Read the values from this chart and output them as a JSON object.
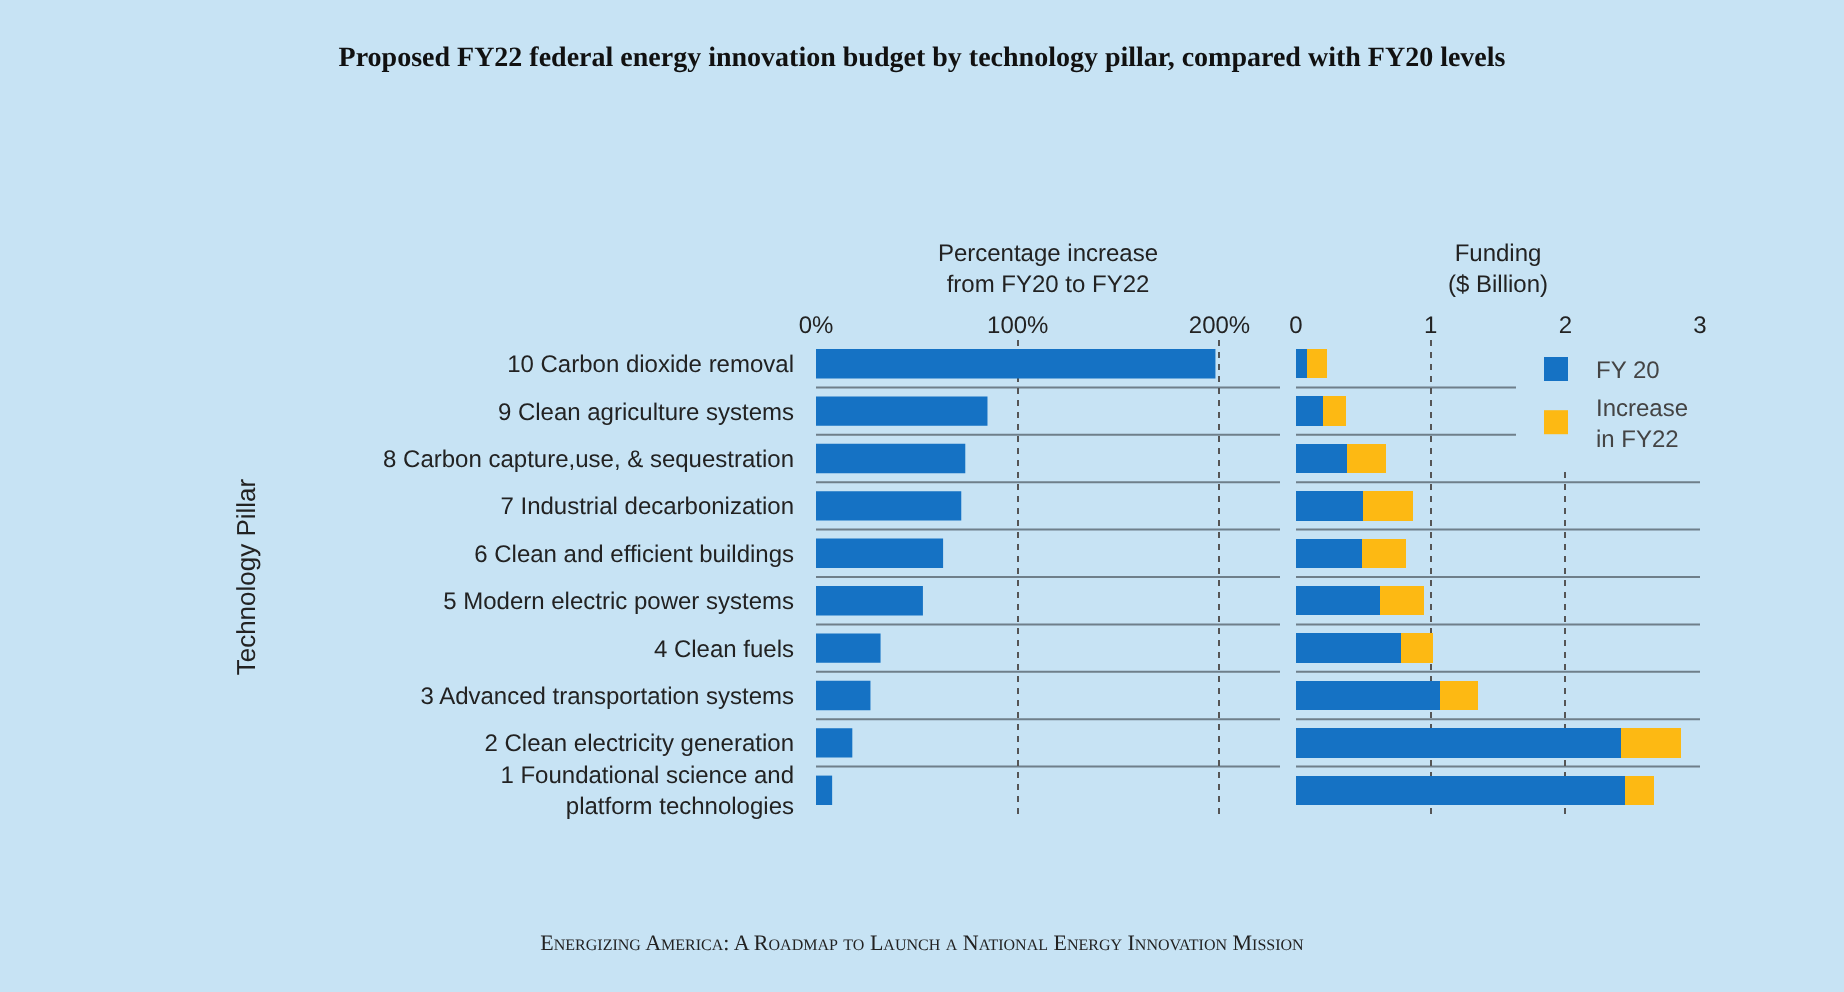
{
  "chart_data": [
    {
      "type": "bar",
      "orientation": "horizontal",
      "title": "Proposed FY22 federal energy innovation budget by technology pillar, compared with FY20 levels",
      "xlabel": "Percentage increase\nfrom FY20 to FY22",
      "ylabel": "Technology Pillar",
      "categories": [
        "10 Carbon dioxide removal",
        "9 Clean agriculture systems",
        "8 Carbon capture,use, & sequestration",
        "7 Industrial decarbonization",
        "6 Clean and efficient buildings",
        "5 Modern electric power systems",
        "4 Clean fuels",
        "3 Advanced transportation systems",
        "2 Clean electricity generation",
        "1 Foundational science and\nplatform technologies"
      ],
      "values": [
        198,
        85,
        74,
        72,
        63,
        53,
        32,
        27,
        18,
        8
      ],
      "color": "#1572c4",
      "xlim": [
        0,
        230
      ],
      "xticks": [
        {
          "value": 0,
          "label": "0%"
        },
        {
          "value": 100,
          "label": "100%"
        },
        {
          "value": 200,
          "label": "200%"
        }
      ],
      "grid": "x",
      "legend": false,
      "annotations": [
        "Energizing America: A Roadmap to Launch a National Energy Innovation Mission"
      ]
    },
    {
      "type": "bar",
      "orientation": "horizontal",
      "stacked": true,
      "xlabel": "Funding\n($ Billion)",
      "categories": [
        null,
        null,
        null,
        null,
        null,
        null,
        null,
        null,
        null,
        null
      ],
      "series": [
        {
          "name": "FY 20",
          "color": "#1572c4",
          "values": [
            0.08,
            0.2,
            0.38,
            0.5,
            0.49,
            0.62,
            0.78,
            1.07,
            2.41,
            2.44
          ]
        },
        {
          "name": "Increase\nin FY22",
          "color": "#fdb913",
          "values": [
            0.15,
            0.17,
            0.29,
            0.37,
            0.33,
            0.33,
            0.24,
            0.28,
            0.45,
            0.22
          ]
        }
      ],
      "xlim": [
        0,
        3
      ],
      "xticks": [
        0,
        1,
        2,
        3
      ],
      "grid": "x",
      "legend": "top right",
      "tick_labels": "x"
    }
  ]
}
